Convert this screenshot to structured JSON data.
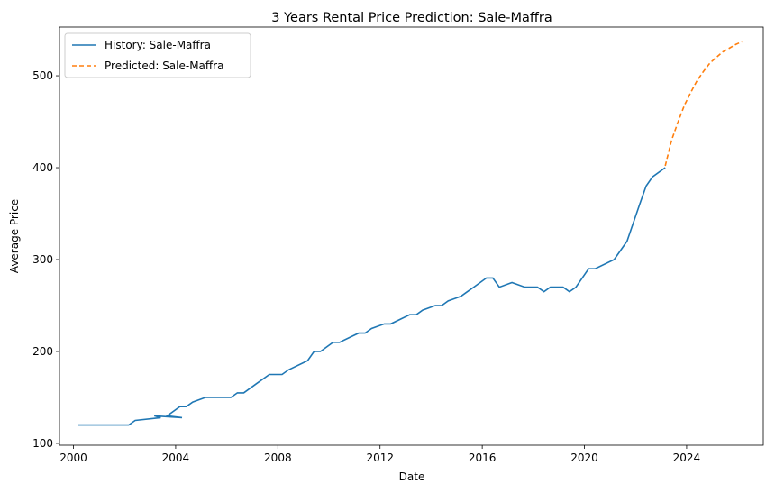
{
  "chart_data": {
    "type": "line",
    "title": "3 Years Rental Price Prediction: Sale-Maffra",
    "xlabel": "Date",
    "ylabel": "Average Price",
    "xlim": [
      "1999-06-15",
      "2027-01-01"
    ],
    "ylim": [
      98,
      553
    ],
    "x_ticks": [
      "2000",
      "2004",
      "2008",
      "2012",
      "2016",
      "2020",
      "2024"
    ],
    "y_ticks": [
      100,
      200,
      300,
      400,
      500
    ],
    "grid": false,
    "legend_position": "upper-left",
    "colors": {
      "history": "#1f77b4",
      "predicted": "#ff7f0e"
    },
    "series": [
      {
        "name": "History: Sale-Maffra",
        "style": "solid",
        "x": [
          "2000-03-01",
          "2001-03-01",
          "2002-03-01",
          "2002-06-01",
          "2003-06-01",
          "2003-03-01",
          "2004-04-01",
          "2003-09-01",
          "2004-03-01",
          "2004-06-01",
          "2004-09-01",
          "2005-03-01",
          "2005-06-01",
          "2006-03-01",
          "2006-06-01",
          "2006-09-01",
          "2007-03-01",
          "2007-09-01",
          "2008-03-01",
          "2008-06-01",
          "2009-03-01",
          "2009-06-01",
          "2009-09-01",
          "2010-03-01",
          "2010-06-01",
          "2011-03-01",
          "2011-06-01",
          "2011-09-01",
          "2012-03-01",
          "2012-06-01",
          "2013-03-01",
          "2013-06-01",
          "2013-09-01",
          "2014-03-01",
          "2014-06-01",
          "2014-09-01",
          "2015-03-01",
          "2015-06-01",
          "2015-09-01",
          "2016-03-01",
          "2016-06-01",
          "2016-09-01",
          "2017-03-01",
          "2017-09-01",
          "2018-03-01",
          "2018-06-01",
          "2018-09-01",
          "2019-03-01",
          "2019-06-01",
          "2019-09-01",
          "2020-03-01",
          "2020-06-01",
          "2021-03-01",
          "2021-09-01",
          "2022-03-01",
          "2022-06-01",
          "2022-09-01",
          "2023-03-01"
        ],
        "y": [
          120,
          120,
          120,
          125,
          128,
          130,
          128,
          130,
          140,
          140,
          145,
          150,
          150,
          150,
          155,
          155,
          165,
          175,
          175,
          180,
          190,
          200,
          200,
          210,
          210,
          220,
          220,
          225,
          230,
          230,
          240,
          240,
          245,
          250,
          250,
          255,
          260,
          265,
          270,
          280,
          280,
          270,
          275,
          270,
          270,
          265,
          270,
          270,
          265,
          270,
          290,
          290,
          300,
          320,
          360,
          380,
          390,
          400
        ]
      },
      {
        "name": "Predicted: Sale-Maffra",
        "style": "dashed",
        "x": [
          "2023-03-01",
          "2023-06-01",
          "2023-09-01",
          "2023-12-01",
          "2024-03-01",
          "2024-06-01",
          "2024-09-01",
          "2024-12-01",
          "2025-03-01",
          "2025-06-01",
          "2025-09-01",
          "2025-12-01",
          "2026-03-01"
        ],
        "y": [
          402,
          430,
          450,
          468,
          482,
          495,
          505,
          514,
          520,
          526,
          530,
          534,
          537
        ]
      }
    ]
  }
}
